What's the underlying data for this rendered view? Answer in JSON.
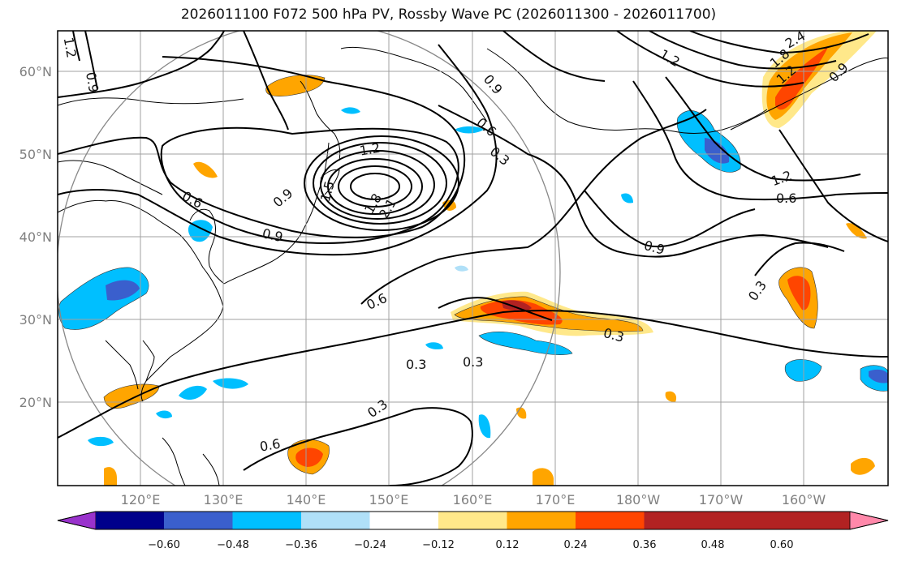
{
  "title": "2026011100 F072 500 hPa PV, Rossby Wave PC (2026011300 - 2026011700)",
  "lat_labels": [
    "60°N",
    "50°N",
    "40°N",
    "30°N",
    "20°N"
  ],
  "lon_labels": [
    "120°E",
    "130°E",
    "140°E",
    "150°E",
    "160°E",
    "170°E",
    "180°W",
    "170°W",
    "160°W"
  ],
  "contour_labels": [
    "1.2",
    "0.9",
    "0.9",
    "0.6",
    "0.6",
    "0.3",
    "1.2",
    "0.9",
    "1.5",
    "1.8",
    "2.1",
    "0.9",
    "0.6",
    "0.3",
    "0.9",
    "0.3",
    "0.6",
    "0.3",
    "0.3",
    "0.3",
    "1.2",
    "0.6",
    "1.2",
    "2.4",
    "1.8",
    "1.2",
    "0.9"
  ],
  "colorbar": {
    "ticks": [
      "−0.60",
      "−0.48",
      "−0.36",
      "−0.24",
      "−0.12",
      "0.12",
      "0.24",
      "0.36",
      "0.48",
      "0.60"
    ],
    "colors": [
      "#9932cc",
      "#00008b",
      "#3a5fcd",
      "#00bfff",
      "#b0e0f8",
      "#ffffff",
      "#ffe88a",
      "#ffa500",
      "#ff4500",
      "#b22222",
      "#ff88aa"
    ]
  },
  "fill_colors": {
    "neg_light": "#b0e0f8",
    "neg_mid": "#00bfff",
    "neg_strong": "#3a5fcd",
    "pos_light": "#ffe88a",
    "pos_mid": "#ffa500",
    "pos_strong": "#ff4500",
    "pos_max": "#b22222"
  }
}
